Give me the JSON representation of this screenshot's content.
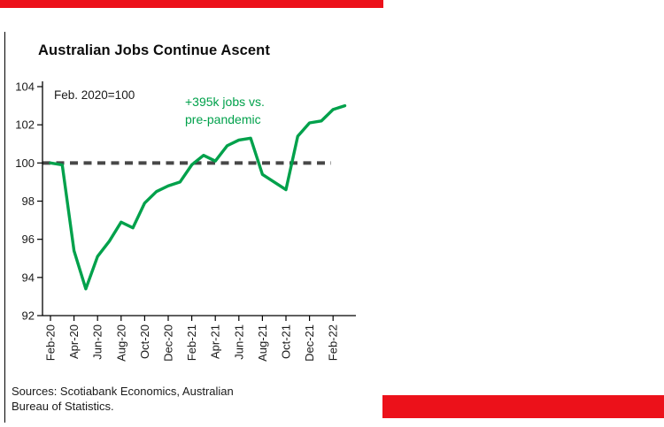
{
  "header": {
    "title": "Australian Jobs Continue Ascent"
  },
  "colors": {
    "brand_red": "#EC111A",
    "line_green": "#00A14B",
    "dash_gray": "#474747",
    "axis_black": "#000000"
  },
  "footer": {
    "sources_line1": "Sources: Scotiabank Economics, Australian",
    "sources_line2": "Bureau of Statistics."
  },
  "chart_data": {
    "type": "line",
    "title": "Australian Jobs Continue Ascent",
    "index_note": "Feb. 2020=100",
    "annotation_lines": [
      "+395k jobs vs.",
      "pre-pandemic"
    ],
    "x": [
      "Feb-20",
      "Mar-20",
      "Apr-20",
      "May-20",
      "Jun-20",
      "Jul-20",
      "Aug-20",
      "Sep-20",
      "Oct-20",
      "Nov-20",
      "Dec-20",
      "Jan-21",
      "Feb-21",
      "Mar-21",
      "Apr-21",
      "May-21",
      "Jun-21",
      "Jul-21",
      "Aug-21",
      "Sep-21",
      "Oct-21",
      "Nov-21",
      "Dec-21",
      "Jan-22",
      "Feb-22",
      "Mar-22"
    ],
    "values": [
      100.0,
      99.9,
      95.4,
      93.4,
      95.1,
      95.9,
      96.9,
      96.6,
      97.9,
      98.5,
      98.8,
      99.0,
      99.9,
      100.4,
      100.1,
      100.9,
      101.2,
      101.3,
      99.4,
      99.0,
      98.6,
      101.4,
      102.1,
      102.2,
      102.8,
      103.0
    ],
    "x_tick_labels": [
      "Feb-20",
      "Apr-20",
      "Jun-20",
      "Aug-20",
      "Oct-20",
      "Dec-20",
      "Feb-21",
      "Apr-21",
      "Jun-21",
      "Aug-21",
      "Oct-21",
      "Dec-21",
      "Feb-22"
    ],
    "x_tick_every": 2,
    "y_ticks": [
      92,
      94,
      96,
      98,
      100,
      102,
      104
    ],
    "ylim": [
      92,
      104
    ],
    "reference_line": {
      "value": 100,
      "style": "dashed"
    },
    "grid": false,
    "legend": "none"
  }
}
